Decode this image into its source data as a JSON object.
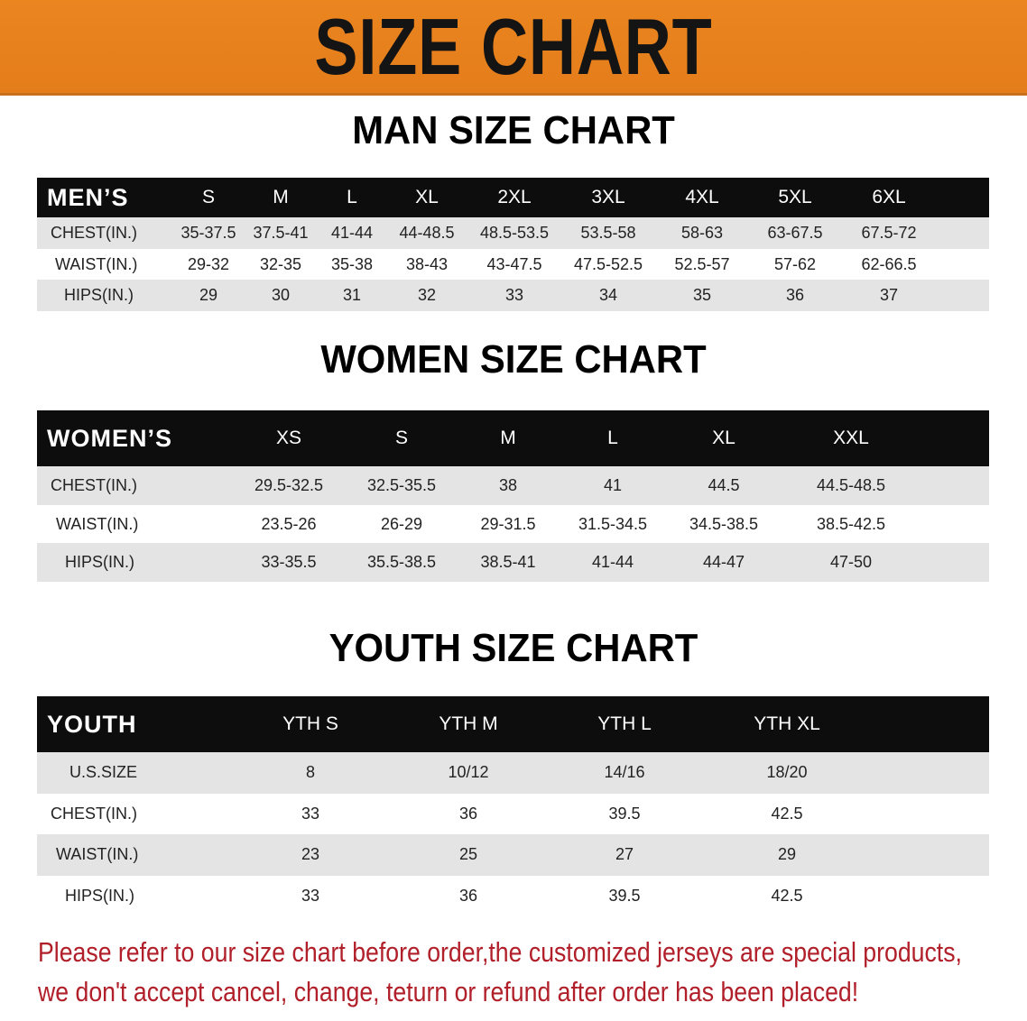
{
  "banner": {
    "title": "SIZE CHART",
    "color": "#e8801e"
  },
  "men": {
    "title": "MAN SIZE CHART",
    "header": [
      "MEN’S",
      "S",
      "M",
      "L",
      "XL",
      "2XL",
      "3XL",
      "4XL",
      "5XL",
      "6XL"
    ],
    "rows": [
      [
        "CHEST(IN.)",
        "35-37.5",
        "37.5-41",
        "41-44",
        "44-48.5",
        "48.5-53.5",
        "53.5-58",
        "58-63",
        "63-67.5",
        "67.5-72"
      ],
      [
        "WAIST(IN.)",
        "29-32",
        "32-35",
        "35-38",
        "38-43",
        "43-47.5",
        "47.5-52.5",
        "52.5-57",
        "57-62",
        "62-66.5"
      ],
      [
        "HIPS(IN.)",
        "29",
        "30",
        "31",
        "32",
        "33",
        "34",
        "35",
        "36",
        "37"
      ]
    ]
  },
  "women": {
    "title": "WOMEN SIZE CHART",
    "header": [
      "WOMEN’S",
      "XS",
      "S",
      "M",
      "L",
      "XL",
      "XXL"
    ],
    "rows": [
      [
        "CHEST(IN.)",
        "29.5-32.5",
        "32.5-35.5",
        "38",
        "41",
        "44.5",
        "44.5-48.5"
      ],
      [
        "WAIST(IN.)",
        "23.5-26",
        "26-29",
        "29-31.5",
        "31.5-34.5",
        "34.5-38.5",
        "38.5-42.5"
      ],
      [
        "HIPS(IN.)",
        "33-35.5",
        "35.5-38.5",
        "38.5-41",
        "41-44",
        "44-47",
        "47-50"
      ]
    ]
  },
  "youth": {
    "title": "YOUTH SIZE CHART",
    "header": [
      "YOUTH",
      "YTH S",
      "YTH M",
      "YTH L",
      "YTH XL"
    ],
    "rows": [
      [
        "U.S.SIZE",
        "8",
        "10/12",
        "14/16",
        "18/20"
      ],
      [
        "CHEST(IN.)",
        "33",
        "36",
        "39.5",
        "42.5"
      ],
      [
        "WAIST(IN.)",
        "23",
        "25",
        "27",
        "29"
      ],
      [
        "HIPS(IN.)",
        "33",
        "36",
        "39.5",
        "42.5"
      ]
    ]
  },
  "footer": {
    "line1": "Please refer to our size chart before order,the customized jerseys are special products,",
    "line2": "we don't accept cancel, change, teturn or refund after order has been placed!",
    "color": "#b1202a"
  }
}
